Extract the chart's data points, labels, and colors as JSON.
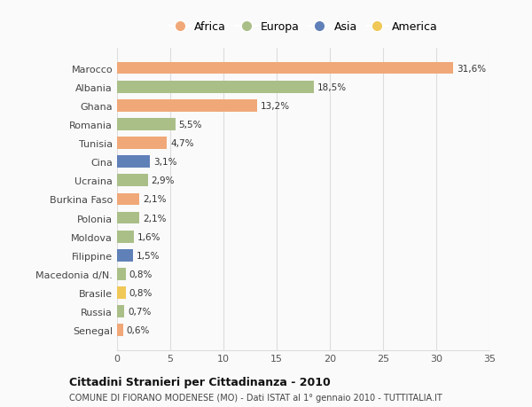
{
  "countries": [
    "Marocco",
    "Albania",
    "Ghana",
    "Romania",
    "Tunisia",
    "Cina",
    "Ucraina",
    "Burkina Faso",
    "Polonia",
    "Moldova",
    "Filippine",
    "Macedonia d/N.",
    "Brasile",
    "Russia",
    "Senegal"
  ],
  "values": [
    31.6,
    18.5,
    13.2,
    5.5,
    4.7,
    3.1,
    2.9,
    2.1,
    2.1,
    1.6,
    1.5,
    0.8,
    0.8,
    0.7,
    0.6
  ],
  "labels": [
    "31,6%",
    "18,5%",
    "13,2%",
    "5,5%",
    "4,7%",
    "3,1%",
    "2,9%",
    "2,1%",
    "2,1%",
    "1,6%",
    "1,5%",
    "0,8%",
    "0,8%",
    "0,7%",
    "0,6%"
  ],
  "continent": [
    "Africa",
    "Europa",
    "Africa",
    "Europa",
    "Africa",
    "Asia",
    "Europa",
    "Africa",
    "Europa",
    "Europa",
    "Asia",
    "Europa",
    "America",
    "Europa",
    "Africa"
  ],
  "colors": {
    "Africa": "#F0A878",
    "Europa": "#AABF88",
    "Asia": "#6080B8",
    "America": "#F0C858"
  },
  "legend_order": [
    "Africa",
    "Europa",
    "Asia",
    "America"
  ],
  "xlim": [
    0,
    35
  ],
  "xticks": [
    0,
    5,
    10,
    15,
    20,
    25,
    30,
    35
  ],
  "title1": "Cittadini Stranieri per Cittadinanza - 2010",
  "title2": "COMUNE DI FIORANO MODENESE (MO) - Dati ISTAT al 1° gennaio 2010 - TUTTITALIA.IT",
  "bg_color": "#FAFAFA",
  "grid_color": "#DDDDDD"
}
